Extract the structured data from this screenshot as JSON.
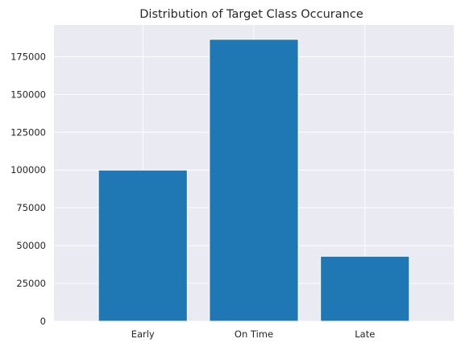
{
  "chart_data": {
    "type": "bar",
    "title": "Distribution of Target Class Occurance",
    "xlabel": "",
    "ylabel": "",
    "categories": [
      "Early",
      "On Time",
      "Late"
    ],
    "values": [
      100000,
      186500,
      43000
    ],
    "ylim": [
      0,
      196000
    ],
    "yticks": [
      0,
      25000,
      50000,
      75000,
      100000,
      125000,
      150000,
      175000
    ],
    "ytick_labels": [
      "0",
      "25000",
      "50000",
      "75000",
      "100000",
      "125000",
      "150000",
      "175000"
    ],
    "grid": true,
    "legend": "none",
    "colors": {
      "bar": "#1f77b4",
      "plot_background": "#eaeaf2",
      "grid": "#ffffff",
      "text": "#262626"
    }
  }
}
